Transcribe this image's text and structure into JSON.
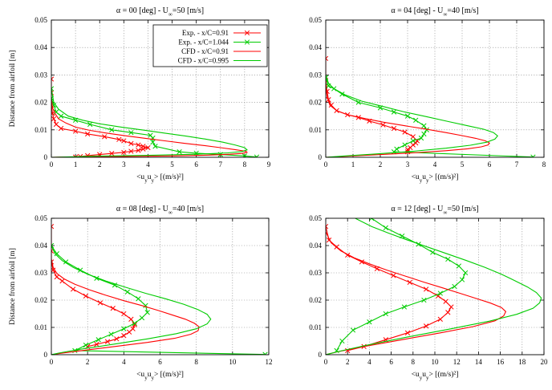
{
  "colors": {
    "exp_red": "#ff0000",
    "exp_green": "#00cc00",
    "cfd_red": "#ff0000",
    "cfd_green": "#00cc00",
    "grid": "#888888"
  },
  "chart_data": [
    {
      "type": "line",
      "title": "α = 00 [deg] - U∞=50 [m/s]",
      "xlabel": "<uyuy> [(m/s)²]",
      "ylabel": "Distance from airfoil [m]",
      "xlim": [
        0,
        9
      ],
      "ylim": [
        0,
        0.05
      ],
      "xticks": [
        0,
        1,
        2,
        3,
        4,
        5,
        6,
        7,
        8,
        9
      ],
      "yticks": [
        0,
        0.01,
        0.02,
        0.03,
        0.04,
        0.05
      ],
      "grid": true,
      "legend": "top-right",
      "series": [
        {
          "name": "Exp. - x/C=0.91",
          "kind": "exp",
          "color": "#ff0000",
          "x": [
            0,
            0,
            0,
            0.05,
            0.1,
            0.2,
            0.4,
            1.0,
            1.5,
            2.2,
            2.8,
            3.0,
            3.3,
            3.6,
            3.8,
            4.0,
            3.8,
            3.6,
            3.3,
            3.0,
            2.5,
            2.0,
            1.5,
            1.2,
            1.0
          ],
          "y": [
            0.0285,
            0.0235,
            0.019,
            0.016,
            0.014,
            0.012,
            0.0105,
            0.0095,
            0.0085,
            0.0075,
            0.0065,
            0.006,
            0.005,
            0.0045,
            0.004,
            0.0035,
            0.003,
            0.0025,
            0.0022,
            0.0018,
            0.0014,
            0.001,
            0.0006,
            0.0003,
            0.0001
          ]
        },
        {
          "name": "Exp. - x/C=1.044",
          "kind": "exp",
          "color": "#00cc00",
          "x": [
            0,
            0,
            0.1,
            0.2,
            0.4,
            1.0,
            1.6,
            2.5,
            3.3,
            4.1,
            4.2,
            4.2,
            4.3,
            5.3,
            6.0,
            7.0,
            8.0,
            8.5
          ],
          "y": [
            0.025,
            0.0215,
            0.019,
            0.0165,
            0.015,
            0.0135,
            0.012,
            0.01,
            0.009,
            0.008,
            0.007,
            0.0055,
            0.004,
            0.002,
            0.0015,
            0.001,
            0.0005,
            0.0001
          ]
        },
        {
          "name": "CFD - x/C=0.91",
          "kind": "cfd",
          "color": "#ff0000",
          "x": [
            0,
            0.05,
            0.15,
            0.3,
            0.6,
            1.0,
            1.6,
            2.3,
            3.1,
            3.9,
            4.7,
            5.5,
            6.3,
            7.0,
            7.6,
            8.05,
            8.1,
            7.9,
            7.4,
            6.5,
            5.0,
            3.0,
            1.2,
            0.3,
            0
          ],
          "y": [
            0.021,
            0.018,
            0.016,
            0.014,
            0.0125,
            0.011,
            0.0098,
            0.0088,
            0.0078,
            0.0069,
            0.006,
            0.0051,
            0.0043,
            0.0035,
            0.0028,
            0.0022,
            0.0018,
            0.0014,
            0.0011,
            0.0008,
            0.0005,
            0.0003,
            0.00015,
            5e-05,
            0
          ]
        },
        {
          "name": "CFD - x/C=0.995",
          "kind": "cfd",
          "color": "#00cc00",
          "x": [
            0,
            0.1,
            0.3,
            0.7,
            1.3,
            2.0,
            2.9,
            3.8,
            4.7,
            5.6,
            6.4,
            7.1,
            7.6,
            8.0,
            8.1,
            7.9,
            7.3,
            6.0,
            4.0,
            1.8,
            0.5,
            0
          ],
          "y": [
            0.025,
            0.02,
            0.0175,
            0.015,
            0.0135,
            0.0122,
            0.011,
            0.0099,
            0.0088,
            0.0077,
            0.0066,
            0.0055,
            0.0045,
            0.0035,
            0.0027,
            0.0021,
            0.0016,
            0.0011,
            0.0007,
            0.0004,
            0.0001,
            0
          ]
        }
      ]
    },
    {
      "type": "line",
      "title": "α = 04 [deg] - U∞=40 [m/s]",
      "xlabel": "<uyuy> [(m/s)²]",
      "ylabel": "",
      "xlim": [
        0,
        8
      ],
      "ylim": [
        0,
        0.05
      ],
      "xticks": [
        0,
        1,
        2,
        3,
        4,
        5,
        6,
        7,
        8
      ],
      "yticks": [
        0,
        0.01,
        0.02,
        0.03,
        0.04,
        0.05
      ],
      "grid": true,
      "series": [
        {
          "name": "Exp. - x/C=0.91",
          "kind": "exp",
          "color": "#ff0000",
          "x": [
            0,
            0,
            0.05,
            0.1,
            0.2,
            0.4,
            0.8,
            1.2,
            1.6,
            2.1,
            2.5,
            2.9,
            3.2,
            3.35,
            3.3,
            3.2,
            3.1,
            3.0,
            3.0
          ],
          "y": [
            0.036,
            0.028,
            0.024,
            0.021,
            0.019,
            0.017,
            0.0155,
            0.0145,
            0.0132,
            0.0118,
            0.0105,
            0.0092,
            0.0075,
            0.006,
            0.0052,
            0.0045,
            0.0035,
            0.0028,
            0.002
          ]
        },
        {
          "name": "Exp. - x/C=1.044",
          "kind": "exp",
          "color": "#00cc00",
          "x": [
            0,
            0.1,
            0.3,
            0.6,
            1.2,
            2.0,
            2.5,
            3.0,
            3.3,
            3.6,
            3.7,
            3.6,
            3.5,
            3.2,
            2.9,
            2.6,
            2.5,
            7.6
          ],
          "y": [
            0.029,
            0.026,
            0.025,
            0.023,
            0.02,
            0.018,
            0.0165,
            0.015,
            0.0135,
            0.0115,
            0.01,
            0.0085,
            0.007,
            0.006,
            0.0045,
            0.003,
            0.002,
            0.0001
          ]
        },
        {
          "name": "CFD - x/C=0.91",
          "kind": "cfd",
          "color": "#ff0000",
          "x": [
            0,
            0.05,
            0.15,
            0.4,
            0.8,
            1.4,
            2.1,
            2.9,
            3.7,
            4.4,
            5.0,
            5.5,
            5.85,
            6.0,
            5.95,
            5.7,
            5.2,
            4.4,
            3.2,
            1.8,
            0.6,
            0
          ],
          "y": [
            0.026,
            0.022,
            0.019,
            0.017,
            0.0155,
            0.0142,
            0.0128,
            0.0115,
            0.0102,
            0.009,
            0.0079,
            0.0069,
            0.006,
            0.0052,
            0.0045,
            0.0038,
            0.0031,
            0.0024,
            0.0016,
            0.0009,
            0.0003,
            0
          ]
        },
        {
          "name": "CFD - x/C=0.995",
          "kind": "cfd",
          "color": "#00cc00",
          "x": [
            0,
            0.1,
            0.3,
            0.7,
            1.3,
            2.1,
            2.9,
            3.7,
            4.5,
            5.2,
            5.8,
            6.15,
            6.3,
            6.2,
            5.9,
            5.3,
            4.4,
            3.2,
            1.8,
            0.6,
            0
          ],
          "y": [
            0.03,
            0.027,
            0.025,
            0.0228,
            0.0205,
            0.0185,
            0.0165,
            0.0148,
            0.013,
            0.0115,
            0.0102,
            0.009,
            0.0078,
            0.0066,
            0.0055,
            0.0044,
            0.0033,
            0.0022,
            0.0012,
            0.0004,
            0
          ]
        }
      ]
    },
    {
      "type": "line",
      "title": "α = 08 [deg] - U∞=40 [m/s]",
      "xlabel": "<uyuy> [(m/s)²]",
      "ylabel": "Distance from airfoil [m]",
      "xlim": [
        0,
        12
      ],
      "ylim": [
        0,
        0.05
      ],
      "xticks": [
        0,
        2,
        4,
        6,
        8,
        10,
        12
      ],
      "yticks": [
        0,
        0.01,
        0.02,
        0.03,
        0.04,
        0.05
      ],
      "grid": true,
      "series": [
        {
          "name": "Exp. - x/C=0.91",
          "kind": "exp",
          "color": "#ff0000",
          "x": [
            0,
            0,
            0,
            0.1,
            0.3,
            0.6,
            1.2,
            1.9,
            2.7,
            3.4,
            4.0,
            4.4,
            4.6,
            4.5,
            4.3,
            4.0,
            3.6,
            3.1,
            2.5,
            2.0
          ],
          "y": [
            0.047,
            0.038,
            0.034,
            0.031,
            0.0285,
            0.027,
            0.024,
            0.0215,
            0.019,
            0.017,
            0.015,
            0.013,
            0.011,
            0.0095,
            0.0083,
            0.007,
            0.0058,
            0.0048,
            0.0038,
            0.003
          ]
        },
        {
          "name": "Exp. - x/C=1.044",
          "kind": "exp",
          "color": "#00cc00",
          "x": [
            0,
            0.3,
            0.8,
            1.6,
            2.5,
            3.5,
            4.2,
            4.8,
            5.2,
            5.3,
            5.0,
            4.6,
            4.0,
            3.3,
            2.6,
            1.9,
            1.3,
            11.8
          ],
          "y": [
            0.04,
            0.037,
            0.034,
            0.031,
            0.028,
            0.0255,
            0.023,
            0.0205,
            0.018,
            0.0155,
            0.0135,
            0.0115,
            0.0095,
            0.0075,
            0.0055,
            0.0035,
            0.0015,
            0.0001
          ]
        },
        {
          "name": "CFD - x/C=0.91",
          "kind": "cfd",
          "color": "#ff0000",
          "x": [
            0,
            0.1,
            0.3,
            0.7,
            1.3,
            2.1,
            3.0,
            4.0,
            5.0,
            5.9,
            6.7,
            7.4,
            7.9,
            8.15,
            8.1,
            7.7,
            6.8,
            5.3,
            3.5,
            1.8,
            0.5,
            0
          ],
          "y": [
            0.035,
            0.032,
            0.0298,
            0.0278,
            0.0258,
            0.0238,
            0.0218,
            0.0198,
            0.018,
            0.0162,
            0.0145,
            0.013,
            0.0115,
            0.0102,
            0.0088,
            0.0075,
            0.006,
            0.0045,
            0.003,
            0.0016,
            0.0005,
            0
          ]
        },
        {
          "name": "CFD - x/C=0.995",
          "kind": "cfd",
          "color": "#00cc00",
          "x": [
            0,
            0.2,
            0.6,
            1.2,
            2.0,
            3.0,
            4.1,
            5.2,
            6.3,
            7.3,
            8.1,
            8.6,
            8.8,
            8.6,
            8.0,
            6.9,
            5.3,
            3.4,
            1.6,
            0.4,
            0
          ],
          "y": [
            0.04,
            0.037,
            0.0345,
            0.032,
            0.0295,
            0.027,
            0.0247,
            0.0225,
            0.0205,
            0.0185,
            0.0165,
            0.0148,
            0.013,
            0.0113,
            0.0095,
            0.0077,
            0.0058,
            0.0038,
            0.002,
            0.0006,
            0
          ]
        }
      ]
    },
    {
      "type": "line",
      "title": "α = 12 [deg] - U∞=50 [m/s]",
      "xlabel": "<uyuy> [(m/s)²]",
      "ylabel": "",
      "xlim": [
        0,
        20
      ],
      "ylim": [
        0,
        0.05
      ],
      "xticks": [
        0,
        2,
        4,
        6,
        8,
        10,
        12,
        14,
        16,
        18,
        20
      ],
      "yticks": [
        0,
        0.01,
        0.02,
        0.03,
        0.04,
        0.05
      ],
      "grid": true,
      "series": [
        {
          "name": "Exp. - x/C=0.91",
          "kind": "exp",
          "color": "#ff0000",
          "x": [
            0,
            0.3,
            1.0,
            2.0,
            3.3,
            4.7,
            6.2,
            7.7,
            9.2,
            10.3,
            11.0,
            11.5,
            11.2,
            10.5,
            9.2,
            7.5,
            5.5,
            3.5,
            2.0
          ],
          "y": [
            0.047,
            0.042,
            0.0395,
            0.0365,
            0.034,
            0.0315,
            0.029,
            0.0265,
            0.024,
            0.0215,
            0.0195,
            0.0175,
            0.0155,
            0.013,
            0.0105,
            0.008,
            0.0055,
            0.003,
            0.0015
          ]
        },
        {
          "name": "Exp. - x/C=1.044",
          "kind": "exp",
          "color": "#00cc00",
          "x": [
            4.2,
            5.5,
            7.0,
            8.5,
            9.8,
            11.2,
            12.2,
            12.8,
            12.5,
            11.8,
            10.5,
            9.0,
            7.2,
            5.5,
            4.0,
            2.5,
            1.5,
            1.0
          ],
          "y": [
            0.05,
            0.0465,
            0.0435,
            0.0405,
            0.0375,
            0.035,
            0.0325,
            0.03,
            0.0275,
            0.025,
            0.0225,
            0.02,
            0.0175,
            0.015,
            0.012,
            0.009,
            0.005,
            0.0015
          ]
        },
        {
          "name": "CFD - x/C=0.91",
          "kind": "cfd",
          "color": "#ff0000",
          "x": [
            0,
            0.5,
            1.4,
            2.6,
            4.0,
            5.6,
            7.3,
            9.0,
            10.7,
            12.3,
            13.8,
            15.1,
            16.1,
            16.5,
            16.3,
            15.5,
            13.5,
            10.5,
            7.0,
            3.5,
            1.0,
            0
          ],
          "y": [
            0.045,
            0.041,
            0.038,
            0.0355,
            0.0333,
            0.031,
            0.0288,
            0.0266,
            0.0245,
            0.0225,
            0.0206,
            0.0189,
            0.0173,
            0.0158,
            0.0142,
            0.0124,
            0.0103,
            0.008,
            0.0055,
            0.003,
            0.001,
            0
          ]
        },
        {
          "name": "CFD - x/C=0.995",
          "kind": "cfd",
          "color": "#00cc00",
          "x": [
            2.7,
            4.2,
            5.8,
            7.5,
            9.3,
            11.1,
            12.9,
            14.6,
            16.1,
            17.4,
            18.5,
            19.3,
            19.75,
            19.6,
            19.0,
            17.5,
            15.0,
            11.5,
            7.5,
            3.8,
            1.2,
            0
          ],
          "y": [
            0.05,
            0.047,
            0.0445,
            0.042,
            0.0395,
            0.037,
            0.0345,
            0.032,
            0.0295,
            0.027,
            0.0248,
            0.0228,
            0.0208,
            0.019,
            0.017,
            0.0148,
            0.0123,
            0.0095,
            0.0065,
            0.0035,
            0.0012,
            0
          ]
        }
      ]
    }
  ]
}
